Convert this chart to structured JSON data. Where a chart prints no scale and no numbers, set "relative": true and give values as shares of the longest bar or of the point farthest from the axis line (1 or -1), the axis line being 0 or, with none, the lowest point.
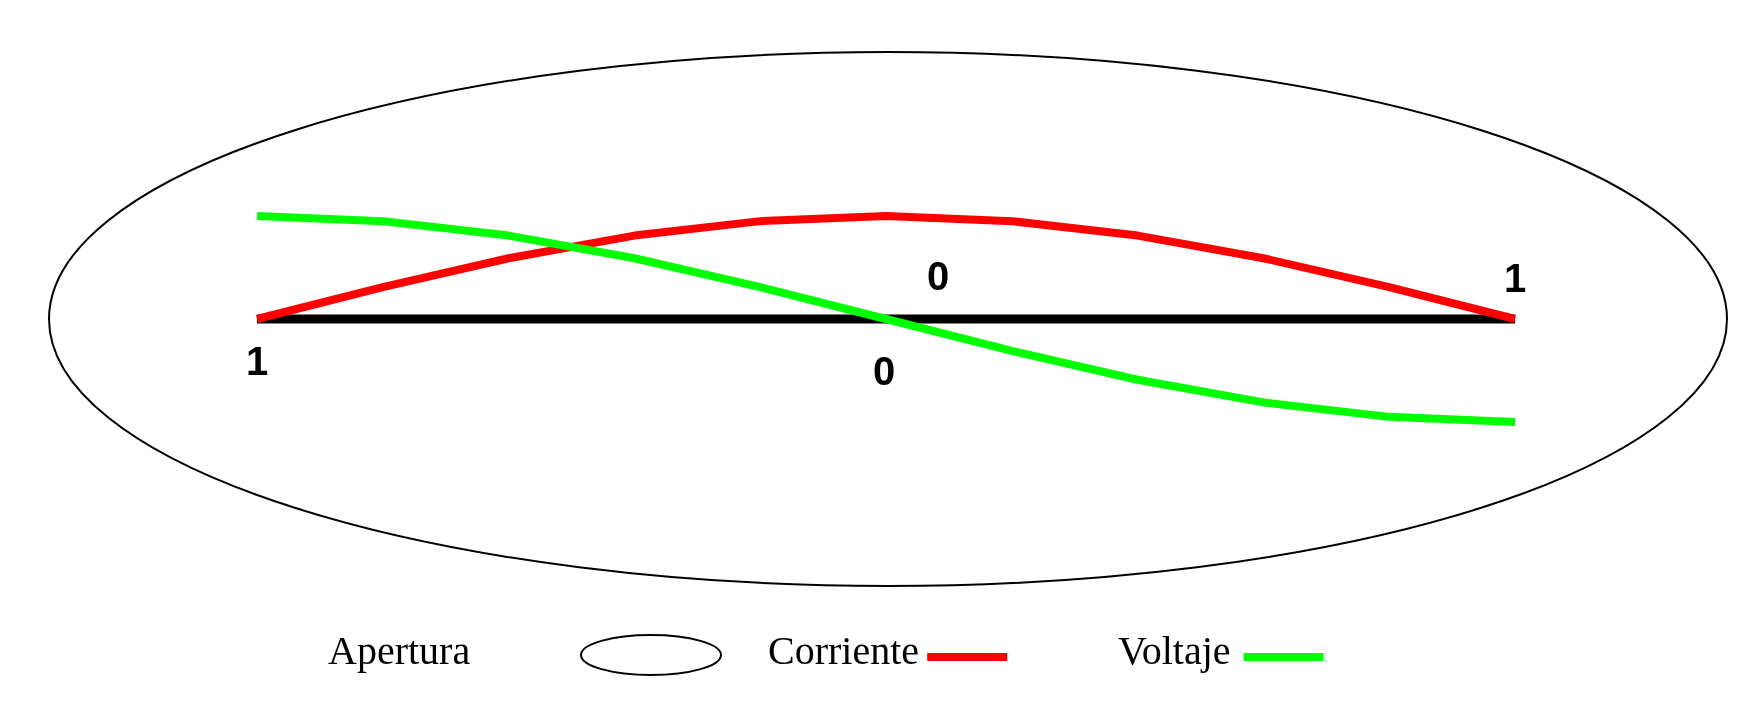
{
  "chart_data": {
    "type": "line",
    "relative": true,
    "legend": "bottom",
    "categories": [
      null,
      null,
      null,
      null,
      null,
      null,
      null,
      null,
      null,
      null,
      null
    ],
    "series": [
      {
        "name": "Corriente",
        "color": "#ff0000",
        "values": [
          0,
          0.31,
          0.59,
          0.81,
          0.95,
          1,
          0.95,
          0.81,
          0.59,
          0.31,
          0
        ]
      },
      {
        "name": "Voltaje",
        "color": "#00ff00",
        "values": [
          1,
          0.95,
          0.81,
          0.59,
          0.31,
          0,
          -0.31,
          -0.59,
          -0.81,
          -0.95,
          -1
        ]
      }
    ],
    "annotations": [
      "1",
      "0",
      "0",
      "1",
      "Apertura"
    ]
  }
}
